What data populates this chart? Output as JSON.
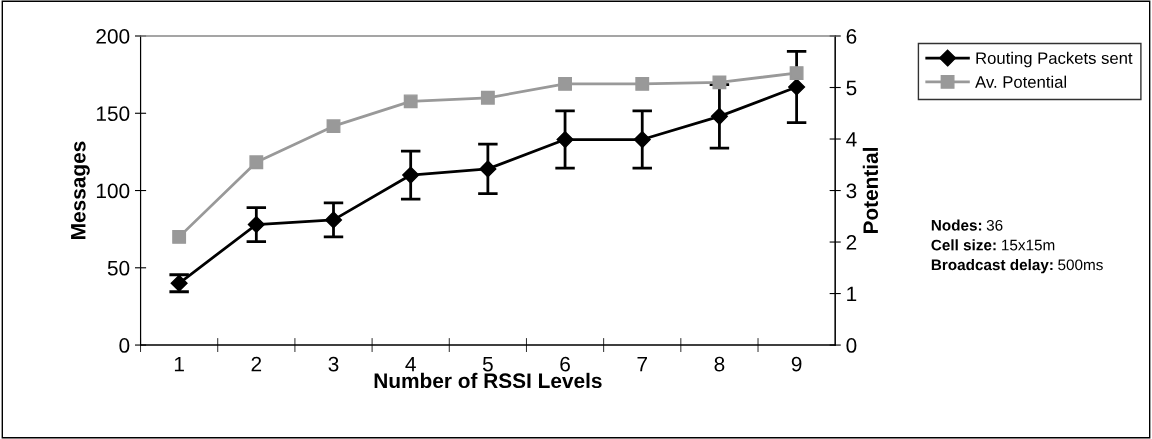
{
  "chart_data": {
    "type": "line",
    "xlabel": "Number of RSSI Levels",
    "ylabel": "Messages",
    "y2label": "Potential",
    "categories": [
      "1",
      "2",
      "3",
      "4",
      "5",
      "6",
      "7",
      "8",
      "9"
    ],
    "series": [
      {
        "name": "Routing Packets sent",
        "color": "#000000",
        "marker": "diamond",
        "values": [
          40,
          78,
          81,
          110,
          114,
          133,
          133,
          148,
          167
        ],
        "errors": [
          5.5,
          11,
          11,
          15.5,
          16,
          18.5,
          18.5,
          20.5,
          23
        ]
      },
      {
        "name": "Av. Potential",
        "color": "#999999",
        "marker": "square",
        "axis": "y2",
        "values": [
          2.1,
          3.55,
          4.25,
          4.73,
          4.8,
          5.07,
          5.07,
          5.1,
          5.28
        ]
      }
    ],
    "ylim": [
      0,
      200
    ],
    "yticks": [
      0,
      50,
      100,
      150,
      200
    ],
    "y2lim": [
      0,
      6
    ],
    "y2ticks": [
      0,
      1,
      2,
      3,
      4,
      5,
      6
    ],
    "grid": false,
    "legend": "right",
    "annotations": [
      "Nodes: 36",
      "Cell size: 15x15m",
      "Broadcast delay: 500ms"
    ]
  }
}
